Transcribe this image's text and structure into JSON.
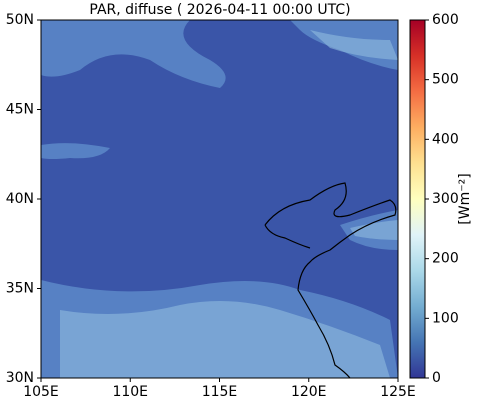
{
  "chart_data": {
    "type": "heatmap",
    "title": "PAR, diffuse ( 2026-04-11 00:00 UTC)",
    "xlim": [
      105,
      125
    ],
    "xticks": [
      {
        "value": 105,
        "label": "105E"
      },
      {
        "value": 110,
        "label": "110E"
      },
      {
        "value": 115,
        "label": "115E"
      },
      {
        "value": 120,
        "label": "120E"
      },
      {
        "value": 125,
        "label": "125E"
      }
    ],
    "ylim": [
      30,
      50
    ],
    "yticks": [
      {
        "value": 30,
        "label": "30N"
      },
      {
        "value": 35,
        "label": "35N"
      },
      {
        "value": 40,
        "label": "40N"
      },
      {
        "value": 45,
        "label": "45N"
      },
      {
        "value": 50,
        "label": "50N"
      }
    ],
    "colorbar": {
      "label": "[Wm⁻²]",
      "lim": [
        0,
        600
      ],
      "ticks": [
        0,
        100,
        200,
        300,
        400,
        500,
        600
      ]
    }
  }
}
